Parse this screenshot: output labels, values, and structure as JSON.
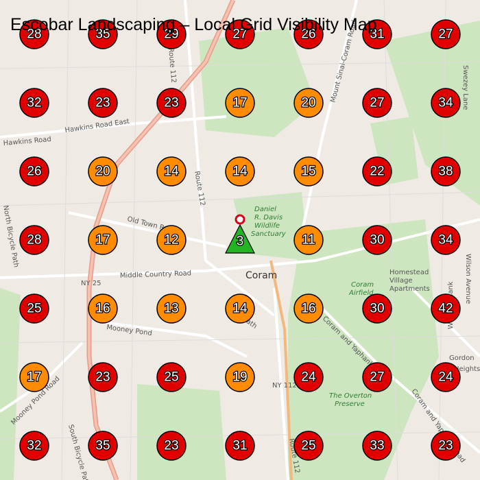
{
  "title": "Escobar Landscaping – Local Grid Visibility Map",
  "grid": {
    "rows": [
      [
        28,
        35,
        29,
        27,
        26,
        31,
        27
      ],
      [
        32,
        23,
        23,
        17,
        20,
        27,
        34
      ],
      [
        26,
        20,
        14,
        14,
        15,
        22,
        38
      ],
      [
        28,
        17,
        12,
        3,
        11,
        30,
        34
      ],
      [
        25,
        16,
        13,
        14,
        16,
        30,
        42
      ],
      [
        17,
        23,
        25,
        19,
        24,
        27,
        24
      ],
      [
        32,
        35,
        23,
        31,
        25,
        33,
        23
      ]
    ],
    "colors": [
      [
        "#e00000",
        "#e00000",
        "#e00000",
        "#e00000",
        "#e00000",
        "#e00000",
        "#e00000"
      ],
      [
        "#e00000",
        "#e00000",
        "#e00000",
        "#ff8c00",
        "#ff8c00",
        "#e00000",
        "#e00000"
      ],
      [
        "#e00000",
        "#ff8c00",
        "#ff8c00",
        "#ff8c00",
        "#ff8c00",
        "#e00000",
        "#e00000"
      ],
      [
        "#e00000",
        "#ff8c00",
        "#ff8c00",
        "#22b422",
        "#ff8c00",
        "#e00000",
        "#e00000"
      ],
      [
        "#e00000",
        "#ff8c00",
        "#ff8c00",
        "#ff8c00",
        "#ff8c00",
        "#e00000",
        "#e00000"
      ],
      [
        "#ff8c00",
        "#e00000",
        "#e00000",
        "#ff8c00",
        "#e00000",
        "#e00000",
        "#e00000"
      ],
      [
        "#e00000",
        "#e00000",
        "#e00000",
        "#e00000",
        "#e00000",
        "#e00000",
        "#e00000"
      ]
    ],
    "center_row": 3,
    "center_col": 3
  },
  "map_labels": [
    "Hawkins Road East",
    "Hawkins Road",
    "Route 112",
    "Route 112",
    "Old Town Road",
    "NY 25",
    "Middle Country Road",
    "Coram",
    "Daniel",
    "R. Davis",
    "Wildlife",
    "Sanctuary",
    "Mount Sinai-Coram Road",
    "Homestead",
    "Village",
    "Apartments",
    "Coram",
    "Airfield",
    "Coram and Yaphank Road",
    "Mooney Pond",
    "Pauls Path",
    "NY 112",
    "The Overton",
    "Preserve",
    "Gordon",
    "Heights",
    "Mooney Pond Road",
    "North Bicycle Path",
    "South Bicycle Path",
    "Wilson Avenue",
    "West Yaphank",
    "Swezey Lane",
    "Route 112",
    "Coram and Yaphank Road"
  ]
}
